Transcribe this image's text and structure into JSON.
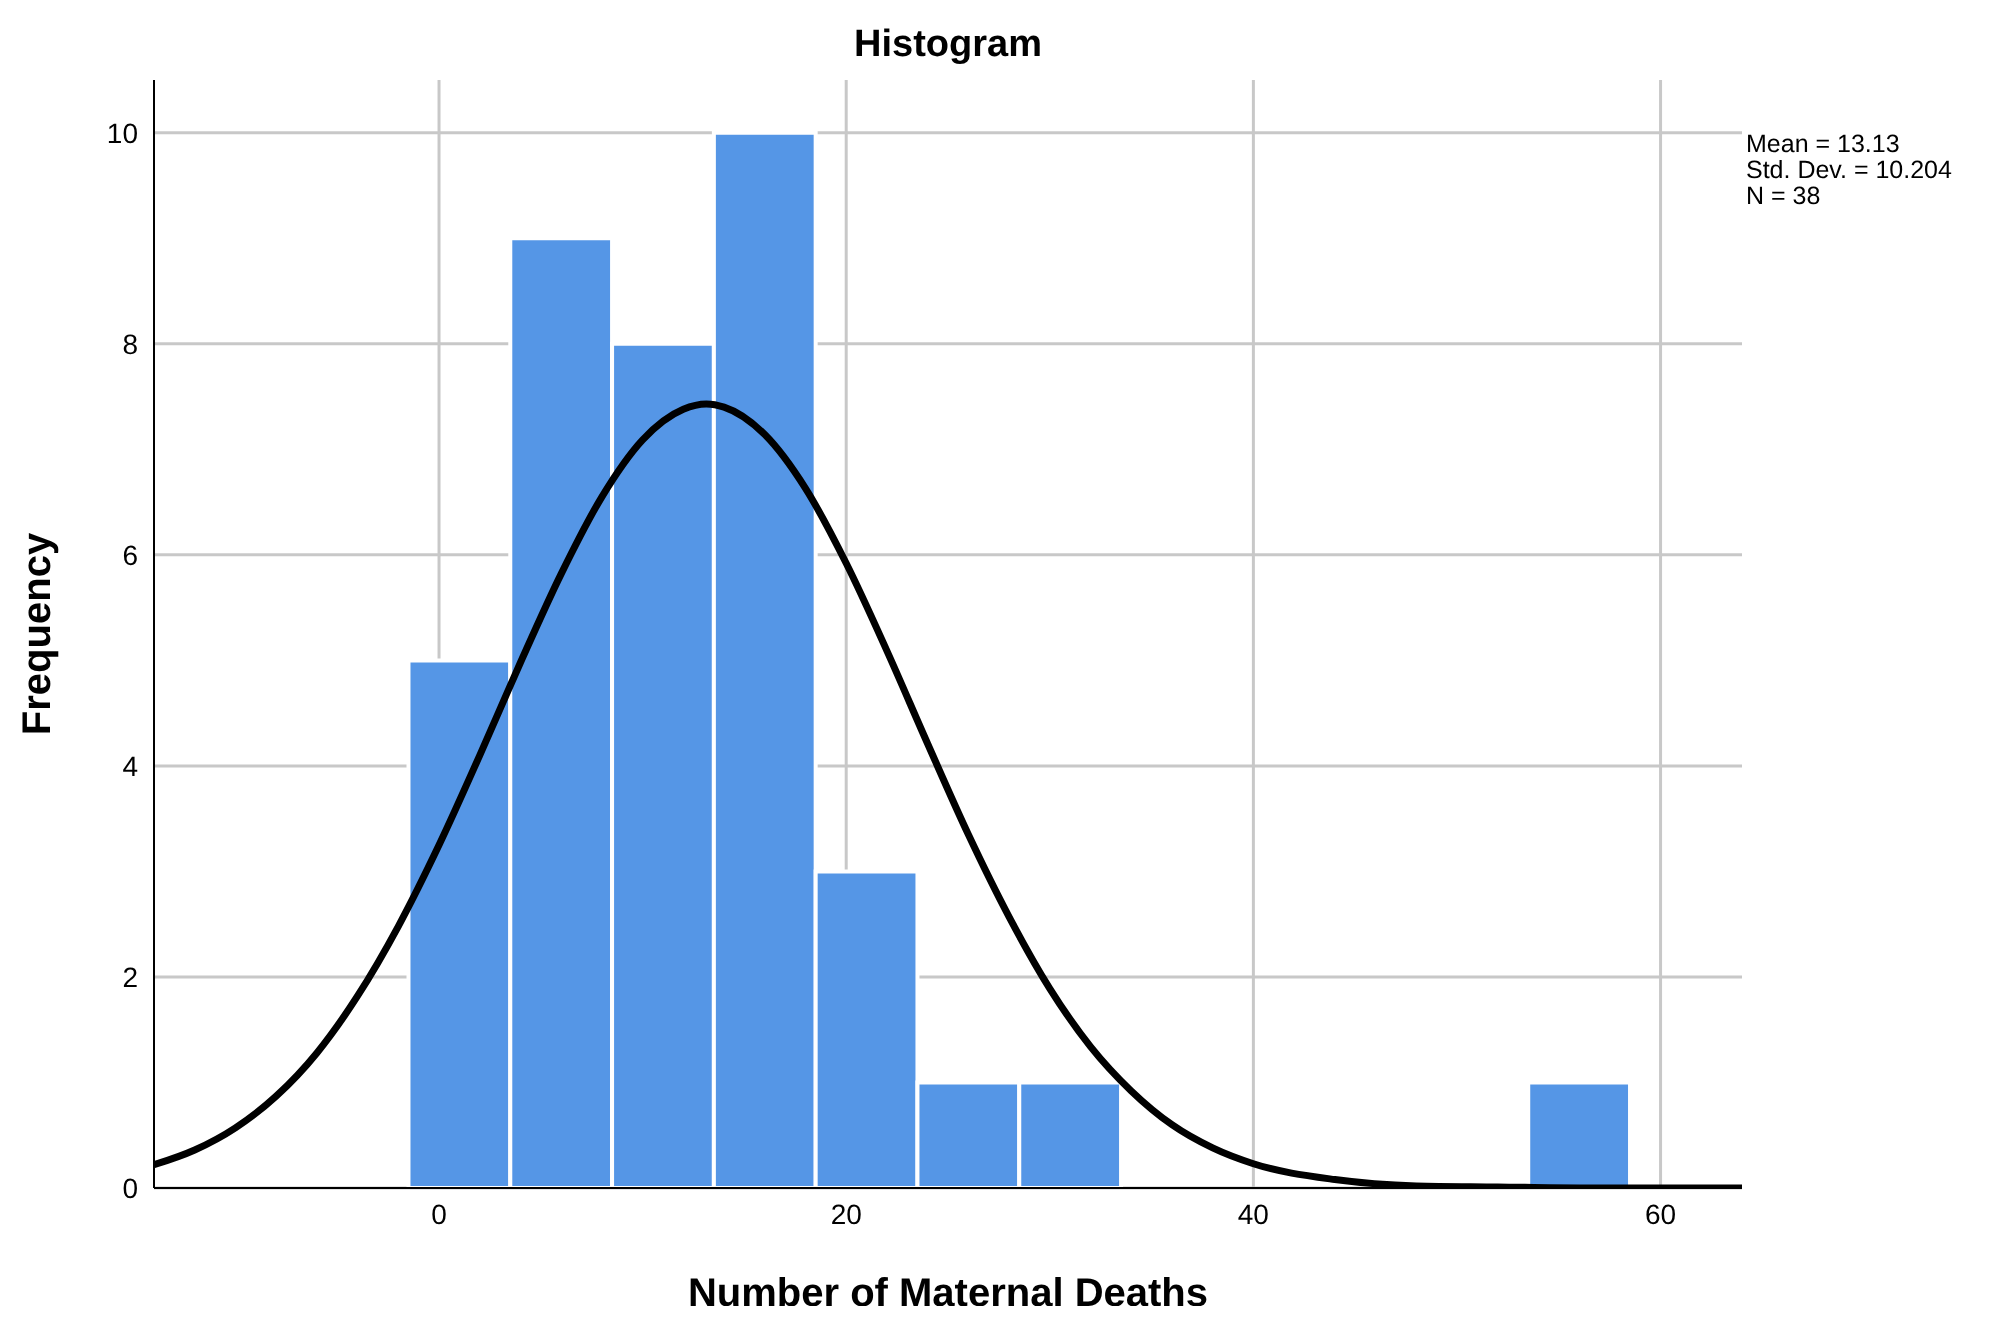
{
  "chart_data": {
    "type": "histogram",
    "title": "Histogram",
    "xlabel": "Number of Maternal Deaths",
    "ylabel": "Frequency",
    "bins": [
      -1.5,
      3.5,
      8.5,
      13.5,
      18.5,
      23.5,
      28.5,
      33.5,
      38.5,
      43.5,
      48.5,
      53.5,
      58.5
    ],
    "values": [
      5,
      9,
      8,
      10,
      3,
      1,
      1,
      0,
      0,
      0,
      0,
      1
    ],
    "color": "#5596e6",
    "series": [
      {
        "type": "line",
        "color": "#000000",
        "x": [
          -14,
          -12,
          -10,
          -8,
          -6,
          -4,
          -2,
          0,
          2,
          4,
          6,
          8,
          10,
          12,
          13.13,
          14,
          16,
          18,
          20,
          22,
          24,
          26,
          28,
          30,
          32,
          34,
          36,
          38,
          40,
          44,
          48,
          52,
          56,
          60,
          64
        ],
        "values": [
          0.22,
          0.36,
          0.57,
          0.87,
          1.28,
          1.82,
          2.48,
          3.25,
          4.1,
          4.98,
          5.82,
          6.55,
          7.09,
          7.38,
          7.43,
          7.4,
          7.14,
          6.63,
          5.92,
          5.09,
          4.21,
          3.35,
          2.57,
          1.89,
          1.34,
          0.92,
          0.6,
          0.38,
          0.23,
          0.08,
          0.02,
          0.01,
          0,
          0,
          0
        ]
      }
    ],
    "xlim": [
      -14,
      64
    ],
    "xticks": [
      0,
      20,
      40,
      60
    ],
    "ylim": [
      0,
      10.5
    ],
    "yticks": [
      0,
      2,
      4,
      6,
      8,
      10
    ],
    "grid": true,
    "marker": "none",
    "line_style": "solid",
    "annotations": [
      "Mean = 13.13",
      "Std. Dev. = 10.204",
      "N = 38"
    ]
  }
}
